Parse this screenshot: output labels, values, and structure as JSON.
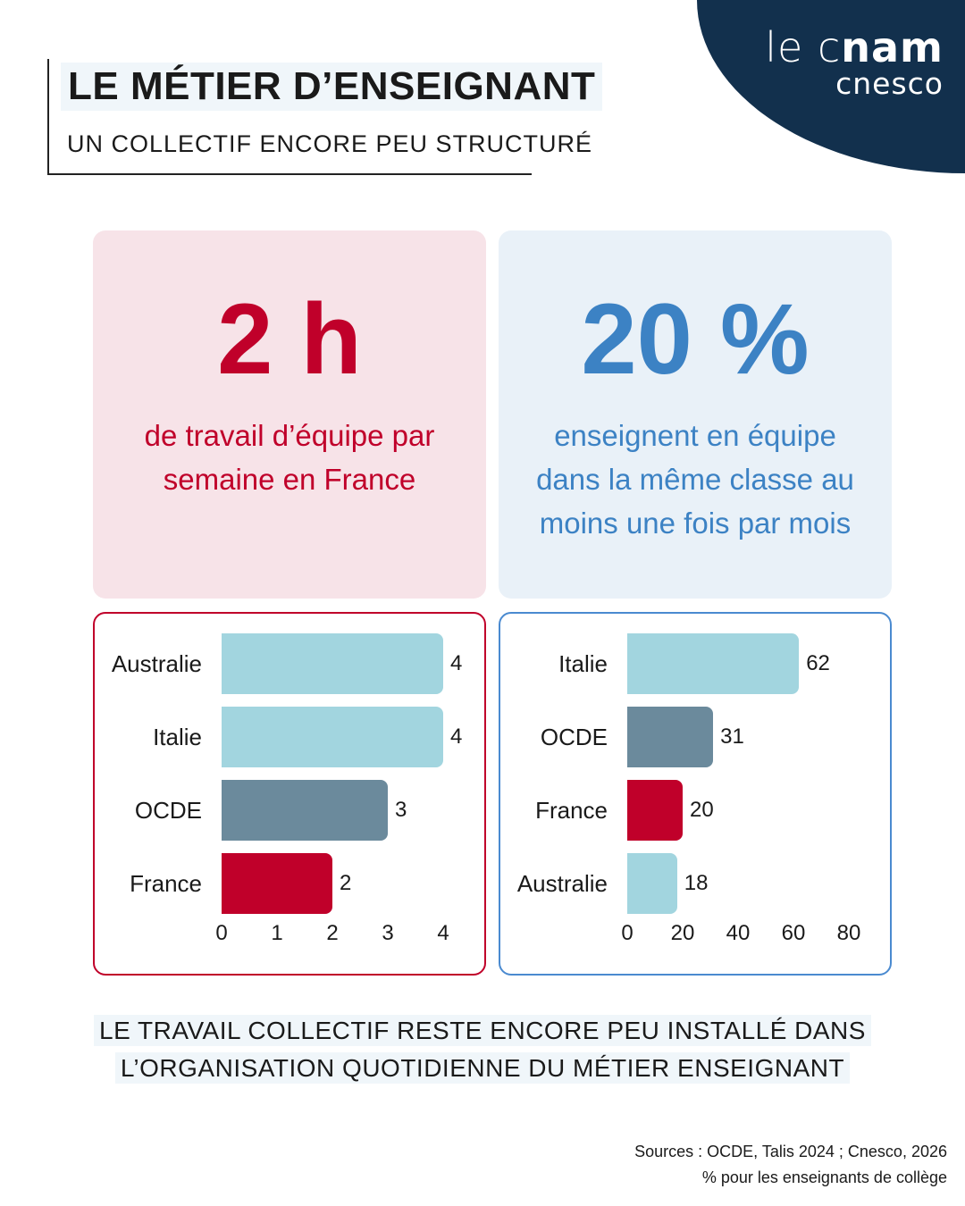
{
  "header": {
    "title": "LE MÉTIER D’ENSEIGNANT",
    "subtitle": "UN COLLECTIF ENCORE PEU STRUCTURÉ"
  },
  "logo": {
    "line1_light": "le c",
    "line1_bold": "nam",
    "line2": "cnesco"
  },
  "stats": [
    {
      "value": "2 h",
      "description": "de travail d’équipe par semaine en France",
      "color": "#c0002a"
    },
    {
      "value": "20 %",
      "description": "enseignent en équipe dans la même classe au moins une fois par mois",
      "color": "#3c82c4"
    }
  ],
  "chart_data": [
    {
      "type": "bar",
      "orientation": "horizontal",
      "categories": [
        "Australie",
        "Italie",
        "OCDE",
        "France"
      ],
      "values": [
        4,
        4,
        3,
        2
      ],
      "colors": [
        "#a2d5df",
        "#a2d5df",
        "#6b8a9c",
        "#c0002a"
      ],
      "xlim": [
        0,
        4
      ],
      "xticks": [
        "0",
        "1",
        "2",
        "3",
        "4"
      ]
    },
    {
      "type": "bar",
      "orientation": "horizontal",
      "categories": [
        "Italie",
        "OCDE",
        "France",
        "Australie"
      ],
      "values": [
        62,
        31,
        20,
        18
      ],
      "colors": [
        "#a2d5df",
        "#6b8a9c",
        "#c0002a",
        "#a2d5df"
      ],
      "xlim": [
        0,
        80
      ],
      "xticks": [
        "0",
        "20",
        "40",
        "60",
        "80"
      ]
    }
  ],
  "conclusion": {
    "line1": "LE TRAVAIL COLLECTIF RESTE ENCORE PEU INSTALLÉ DANS",
    "line2": "L’ORGANISATION QUOTIDIENNE DU MÉTIER ENSEIGNANT"
  },
  "sources": {
    "line1": "Sources : OCDE, Talis 2024 ; Cnesco, 2026",
    "line2": "% pour les enseignants de collège"
  }
}
